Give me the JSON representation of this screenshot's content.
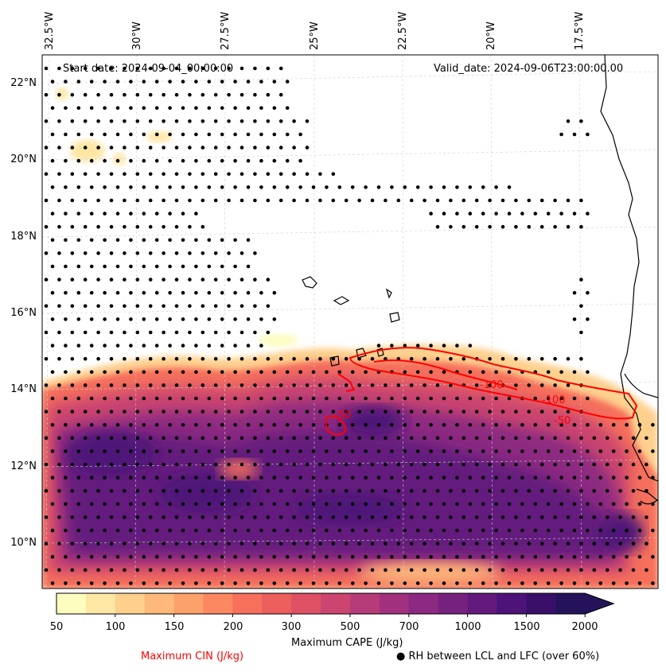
{
  "map": {
    "start_label": "Start date: 2024-09-04_00:00:00",
    "valid_label": "Valid_date: 2024-09-06T23:00:00.00",
    "longitude_labels": [
      "32.5°W",
      "30°W",
      "27.5°W",
      "25°W",
      "22.5°W",
      "20°W",
      "17.5°W"
    ],
    "latitude_labels": [
      "22°N",
      "20°N",
      "18°N",
      "16°N",
      "14°N",
      "12°N",
      "10°N"
    ],
    "cin_contour_labels": [
      "-100",
      "-100",
      "-50",
      "-50"
    ]
  },
  "colorbar": {
    "ticks": [
      "50",
      "100",
      "150",
      "200",
      "300",
      "500",
      "700",
      "1000",
      "1500",
      "2000"
    ],
    "label": "Maximum CAPE (J/kg)",
    "colors": [
      "#fcfdbf",
      "#fee6a4",
      "#fed08e",
      "#feb97a",
      "#fda16b",
      "#fb8861",
      "#f6705c",
      "#ec5f5d",
      "#de5165",
      "#cb4570",
      "#b63c79",
      "#a1307e",
      "#8c2981",
      "#77217f",
      "#631a7d",
      "#4e1378",
      "#390f6a",
      "#24135a"
    ]
  },
  "legend": {
    "cin_label": "Maximum CIN (J/kg)",
    "cin_color": "#ff0000",
    "rh_label": "● RH between LCL and LFC (over 60%)"
  }
}
